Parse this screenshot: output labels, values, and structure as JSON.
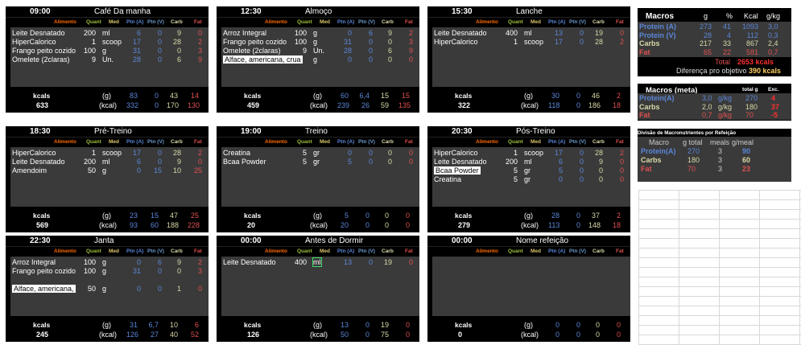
{
  "columns": {
    "alimento": "Alimento",
    "quant": "Quant",
    "med": "Med",
    "ptna": "Ptn (A)",
    "ptnv": "Ptn (V)",
    "carb": "Carb",
    "fat": "Fat"
  },
  "footer_labels": {
    "kcals": "kcals",
    "g": "(g)",
    "kcal": "(kcal)"
  },
  "meals": [
    {
      "time": "09:00",
      "name": "Café Da manha",
      "rows": [
        {
          "food": "Leite Desnatado",
          "q": "200",
          "m": "ml",
          "pa": "6",
          "pv": "0",
          "c": "9",
          "f": "0"
        },
        {
          "food": "HiperCalorico",
          "q": "1",
          "m": "scoop",
          "pa": "17",
          "pv": "0",
          "c": "28",
          "f": "2"
        },
        {
          "food": "Frango peito cozido",
          "q": "100",
          "m": "g",
          "pa": "31",
          "pv": "0",
          "c": "0",
          "f": "3"
        },
        {
          "food": "Omelete (2claras)",
          "q": "9",
          "m": "Un.",
          "pa": "28",
          "pv": "0",
          "c": "6",
          "f": "9"
        }
      ],
      "kcal": "633",
      "g": {
        "pa": "83",
        "pv": "0",
        "c": "43",
        "f": "14"
      },
      "kc": {
        "pa": "332",
        "pv": "0",
        "c": "170",
        "f": "130"
      }
    },
    {
      "time": "12:30",
      "name": "Almoço",
      "rows": [
        {
          "food": "Arroz Integral",
          "q": "100",
          "m": "g",
          "pa": "0",
          "pv": "6",
          "c": "9",
          "f": "2"
        },
        {
          "food": "Frango peito cozido",
          "q": "100",
          "m": "g",
          "pa": "31",
          "pv": "0",
          "c": "0",
          "f": "3"
        },
        {
          "food": "Omelete (2claras)",
          "q": "9",
          "m": "Un.",
          "pa": "28",
          "pv": "0",
          "c": "6",
          "f": "9"
        },
        {
          "food": "Alface, americana, crua",
          "q": "",
          "m": "g",
          "pa": "0",
          "pv": "0",
          "c": "0",
          "f": "0",
          "hl": true
        }
      ],
      "kcal": "459",
      "g": {
        "pa": "60",
        "pv": "6,4",
        "c": "15",
        "f": "15"
      },
      "kc": {
        "pa": "239",
        "pv": "26",
        "c": "59",
        "f": "135"
      }
    },
    {
      "time": "15:30",
      "name": "Lanche",
      "rows": [
        {
          "food": "Leite Desnatado",
          "q": "400",
          "m": "ml",
          "pa": "13",
          "pv": "0",
          "c": "19",
          "f": "0"
        },
        {
          "food": "HiperCalorico",
          "q": "1",
          "m": "scoop",
          "pa": "17",
          "pv": "0",
          "c": "28",
          "f": "2"
        }
      ],
      "kcal": "322",
      "g": {
        "pa": "30",
        "pv": "0",
        "c": "46",
        "f": "2"
      },
      "kc": {
        "pa": "118",
        "pv": "0",
        "c": "186",
        "f": "18"
      }
    },
    {
      "time": "18:30",
      "name": "Pré-Treino",
      "rows": [
        {
          "food": "HiperCalorico",
          "q": "1",
          "m": "scoop",
          "pa": "17",
          "pv": "0",
          "c": "28",
          "f": "2"
        },
        {
          "food": "Leite Desnatado",
          "q": "200",
          "m": "ml",
          "pa": "6",
          "pv": "0",
          "c": "9",
          "f": "0"
        },
        {
          "food": "Amendoim",
          "q": "50",
          "m": "g",
          "pa": "0",
          "pv": "15",
          "c": "10",
          "f": "25"
        }
      ],
      "kcal": "569",
      "g": {
        "pa": "23",
        "pv": "15",
        "c": "47",
        "f": "25"
      },
      "kc": {
        "pa": "93",
        "pv": "60",
        "c": "188",
        "f": "228"
      }
    },
    {
      "time": "19:00",
      "name": "Treino",
      "rows": [
        {
          "food": "Creatina",
          "q": "5",
          "m": "gr",
          "pa": "0",
          "pv": "0",
          "c": "0",
          "f": "0"
        },
        {
          "food": "Bcaa Powder",
          "q": "5",
          "m": "gr",
          "pa": "5",
          "pv": "0",
          "c": "0",
          "f": "0"
        }
      ],
      "kcal": "20",
      "g": {
        "pa": "5",
        "pv": "0",
        "c": "0",
        "f": "0"
      },
      "kc": {
        "pa": "20",
        "pv": "0",
        "c": "0",
        "f": "0"
      }
    },
    {
      "time": "20:30",
      "name": "Pós-Treino",
      "rows": [
        {
          "food": "HiperCalorico",
          "q": "1",
          "m": "scoop",
          "pa": "17",
          "pv": "0",
          "c": "28",
          "f": "2"
        },
        {
          "food": "Leite Desnatado",
          "q": "200",
          "m": "ml",
          "pa": "6",
          "pv": "0",
          "c": "9",
          "f": "0"
        },
        {
          "food": "Bcaa Powder",
          "q": "5",
          "m": "gr",
          "pa": "5",
          "pv": "0",
          "c": "0",
          "f": "0",
          "hl": true
        },
        {
          "food": "Creatina",
          "q": "5",
          "m": "gr",
          "pa": "0",
          "pv": "0",
          "c": "0",
          "f": "0"
        }
      ],
      "kcal": "279",
      "g": {
        "pa": "28",
        "pv": "0",
        "c": "37",
        "f": "2"
      },
      "kc": {
        "pa": "113",
        "pv": "0",
        "c": "148",
        "f": "18"
      }
    },
    {
      "time": "22:30",
      "name": "Janta",
      "rows": [
        {
          "food": "Arroz Integral",
          "q": "100",
          "m": "g",
          "pa": "0",
          "pv": "6",
          "c": "9",
          "f": "2"
        },
        {
          "food": "Frango peito cozido",
          "q": "100",
          "m": "g",
          "pa": "31",
          "pv": "0",
          "c": "0",
          "f": "3"
        },
        {
          "food": "",
          "q": "",
          "m": "",
          "pa": "",
          "pv": "",
          "c": "",
          "f": ""
        },
        {
          "food": "Alface, americana,",
          "q": "50",
          "m": "g",
          "pa": "0",
          "pv": "0",
          "c": "1",
          "f": "0",
          "hl": true
        }
      ],
      "kcal": "245",
      "g": {
        "pa": "31",
        "pv": "6,7",
        "c": "10",
        "f": "6"
      },
      "kc": {
        "pa": "126",
        "pv": "27",
        "c": "40",
        "f": "52"
      }
    },
    {
      "time": "00:00",
      "name": "Antes de Dormir",
      "rows": [
        {
          "food": "Leite Desnatado",
          "q": "400",
          "m": "ml",
          "pa": "13",
          "pv": "0",
          "c": "19",
          "f": "0",
          "sel": true
        }
      ],
      "kcal": "126",
      "g": {
        "pa": "13",
        "pv": "0",
        "c": "19",
        "f": "0"
      },
      "kc": {
        "pa": "50",
        "pv": "0",
        "c": "75",
        "f": "0"
      }
    },
    {
      "time": "00:00",
      "name": "Nome refeição",
      "rows": [],
      "kcal": "0",
      "g": {
        "pa": "0",
        "pv": "0",
        "c": "0",
        "f": "0"
      },
      "kc": {
        "pa": "0",
        "pv": "0",
        "c": "0",
        "f": "0"
      }
    }
  ],
  "macros": {
    "title": "Macros",
    "h_g": "g",
    "h_pct": "%",
    "h_kcal": "Kcal",
    "h_gkg": "g/kg",
    "rows": [
      {
        "label": "Protein (A)",
        "g": "273",
        "pct": "41",
        "kcal": "1093",
        "gkg": "3,0",
        "color": "#5b86d8"
      },
      {
        "label": "Protein (V)",
        "g": "28",
        "pct": "4",
        "kcal": "112",
        "gkg": "0,3",
        "color": "#5b86d8"
      },
      {
        "label": "Carbs",
        "g": "217",
        "pct": "33",
        "kcal": "867",
        "gkg": "2,4",
        "color": "#d9d8a8"
      },
      {
        "label": "Fat",
        "g": "65",
        "pct": "22",
        "kcal": "581",
        "gkg": "0,7",
        "color": "#e05050"
      }
    ],
    "total_label": "Total",
    "total_value": "2653 kcals",
    "diff_label": "Diferença pro objetivo",
    "diff_value": "390 kcals"
  },
  "meta": {
    "title": "Macros (meta)",
    "h_total": "total g",
    "h_exc": "Exc.",
    "rows": [
      {
        "label": "Protein(A)",
        "v": "3,0",
        "u": "g/kg",
        "t": "270",
        "e": "4",
        "color": "#5b86d8"
      },
      {
        "label": "Carbs",
        "v": "2,0",
        "u": "g/kg",
        "t": "180",
        "e": "37",
        "color": "#d9d8a8"
      },
      {
        "label": "Fat",
        "v": "0,7",
        "u": "g/kg",
        "t": "70",
        "e": "-5",
        "color": "#e05050"
      }
    ]
  },
  "split": {
    "title": "Divisão de Macronutrientes por Refeição",
    "h_macro": "Macro",
    "h_total": "g total",
    "h_meals": "meals",
    "h_gmeal": "g/meal",
    "rows": [
      {
        "label": "Protein(A)",
        "t": "270",
        "m": "3",
        "g": "90",
        "color": "#5b86d8"
      },
      {
        "label": "Carbs",
        "t": "180",
        "m": "3",
        "g": "60",
        "color": "#d9d8a8"
      },
      {
        "label": "Fat",
        "t": "70",
        "m": "3",
        "g": "23",
        "color": "#e05050"
      }
    ]
  }
}
